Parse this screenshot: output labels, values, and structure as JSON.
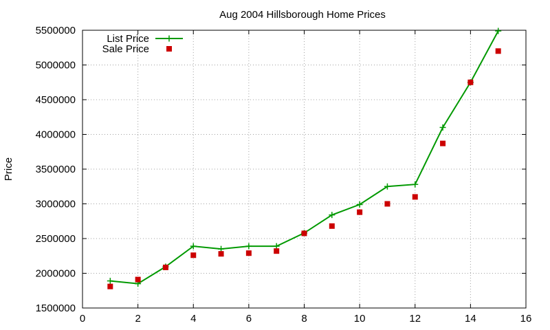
{
  "chart_data": {
    "type": "line",
    "title": "Aug 2004 Hillsborough Home Prices",
    "xlabel": "",
    "ylabel": "Price",
    "xlim": [
      0,
      16
    ],
    "ylim": [
      1500000,
      5500000
    ],
    "xticks": [
      0,
      2,
      4,
      6,
      8,
      10,
      12,
      14,
      16
    ],
    "yticks": [
      1500000,
      2000000,
      2500000,
      3000000,
      3500000,
      4000000,
      4500000,
      5000000,
      5500000
    ],
    "grid": true,
    "legend_position": "top-left",
    "series": [
      {
        "name": "List Price",
        "style": "line-with-plus-markers",
        "color": "#009900",
        "x": [
          1,
          2,
          3,
          4,
          5,
          6,
          7,
          8,
          9,
          10,
          11,
          12,
          13,
          14,
          15
        ],
        "y": [
          1890000,
          1850000,
          2095000,
          2390000,
          2350000,
          2390000,
          2390000,
          2580000,
          2840000,
          2990000,
          3250000,
          3280000,
          4100000,
          4750000,
          5490000
        ]
      },
      {
        "name": "Sale Price",
        "style": "square-markers",
        "color": "#cc0000",
        "x": [
          1,
          2,
          3,
          4,
          5,
          6,
          7,
          8,
          9,
          10,
          11,
          12,
          13,
          14,
          15
        ],
        "y": [
          1810000,
          1910000,
          2085000,
          2260000,
          2280000,
          2290000,
          2320000,
          2575000,
          2680000,
          2880000,
          3000000,
          3100000,
          3870000,
          4750000,
          5200000
        ]
      }
    ]
  }
}
